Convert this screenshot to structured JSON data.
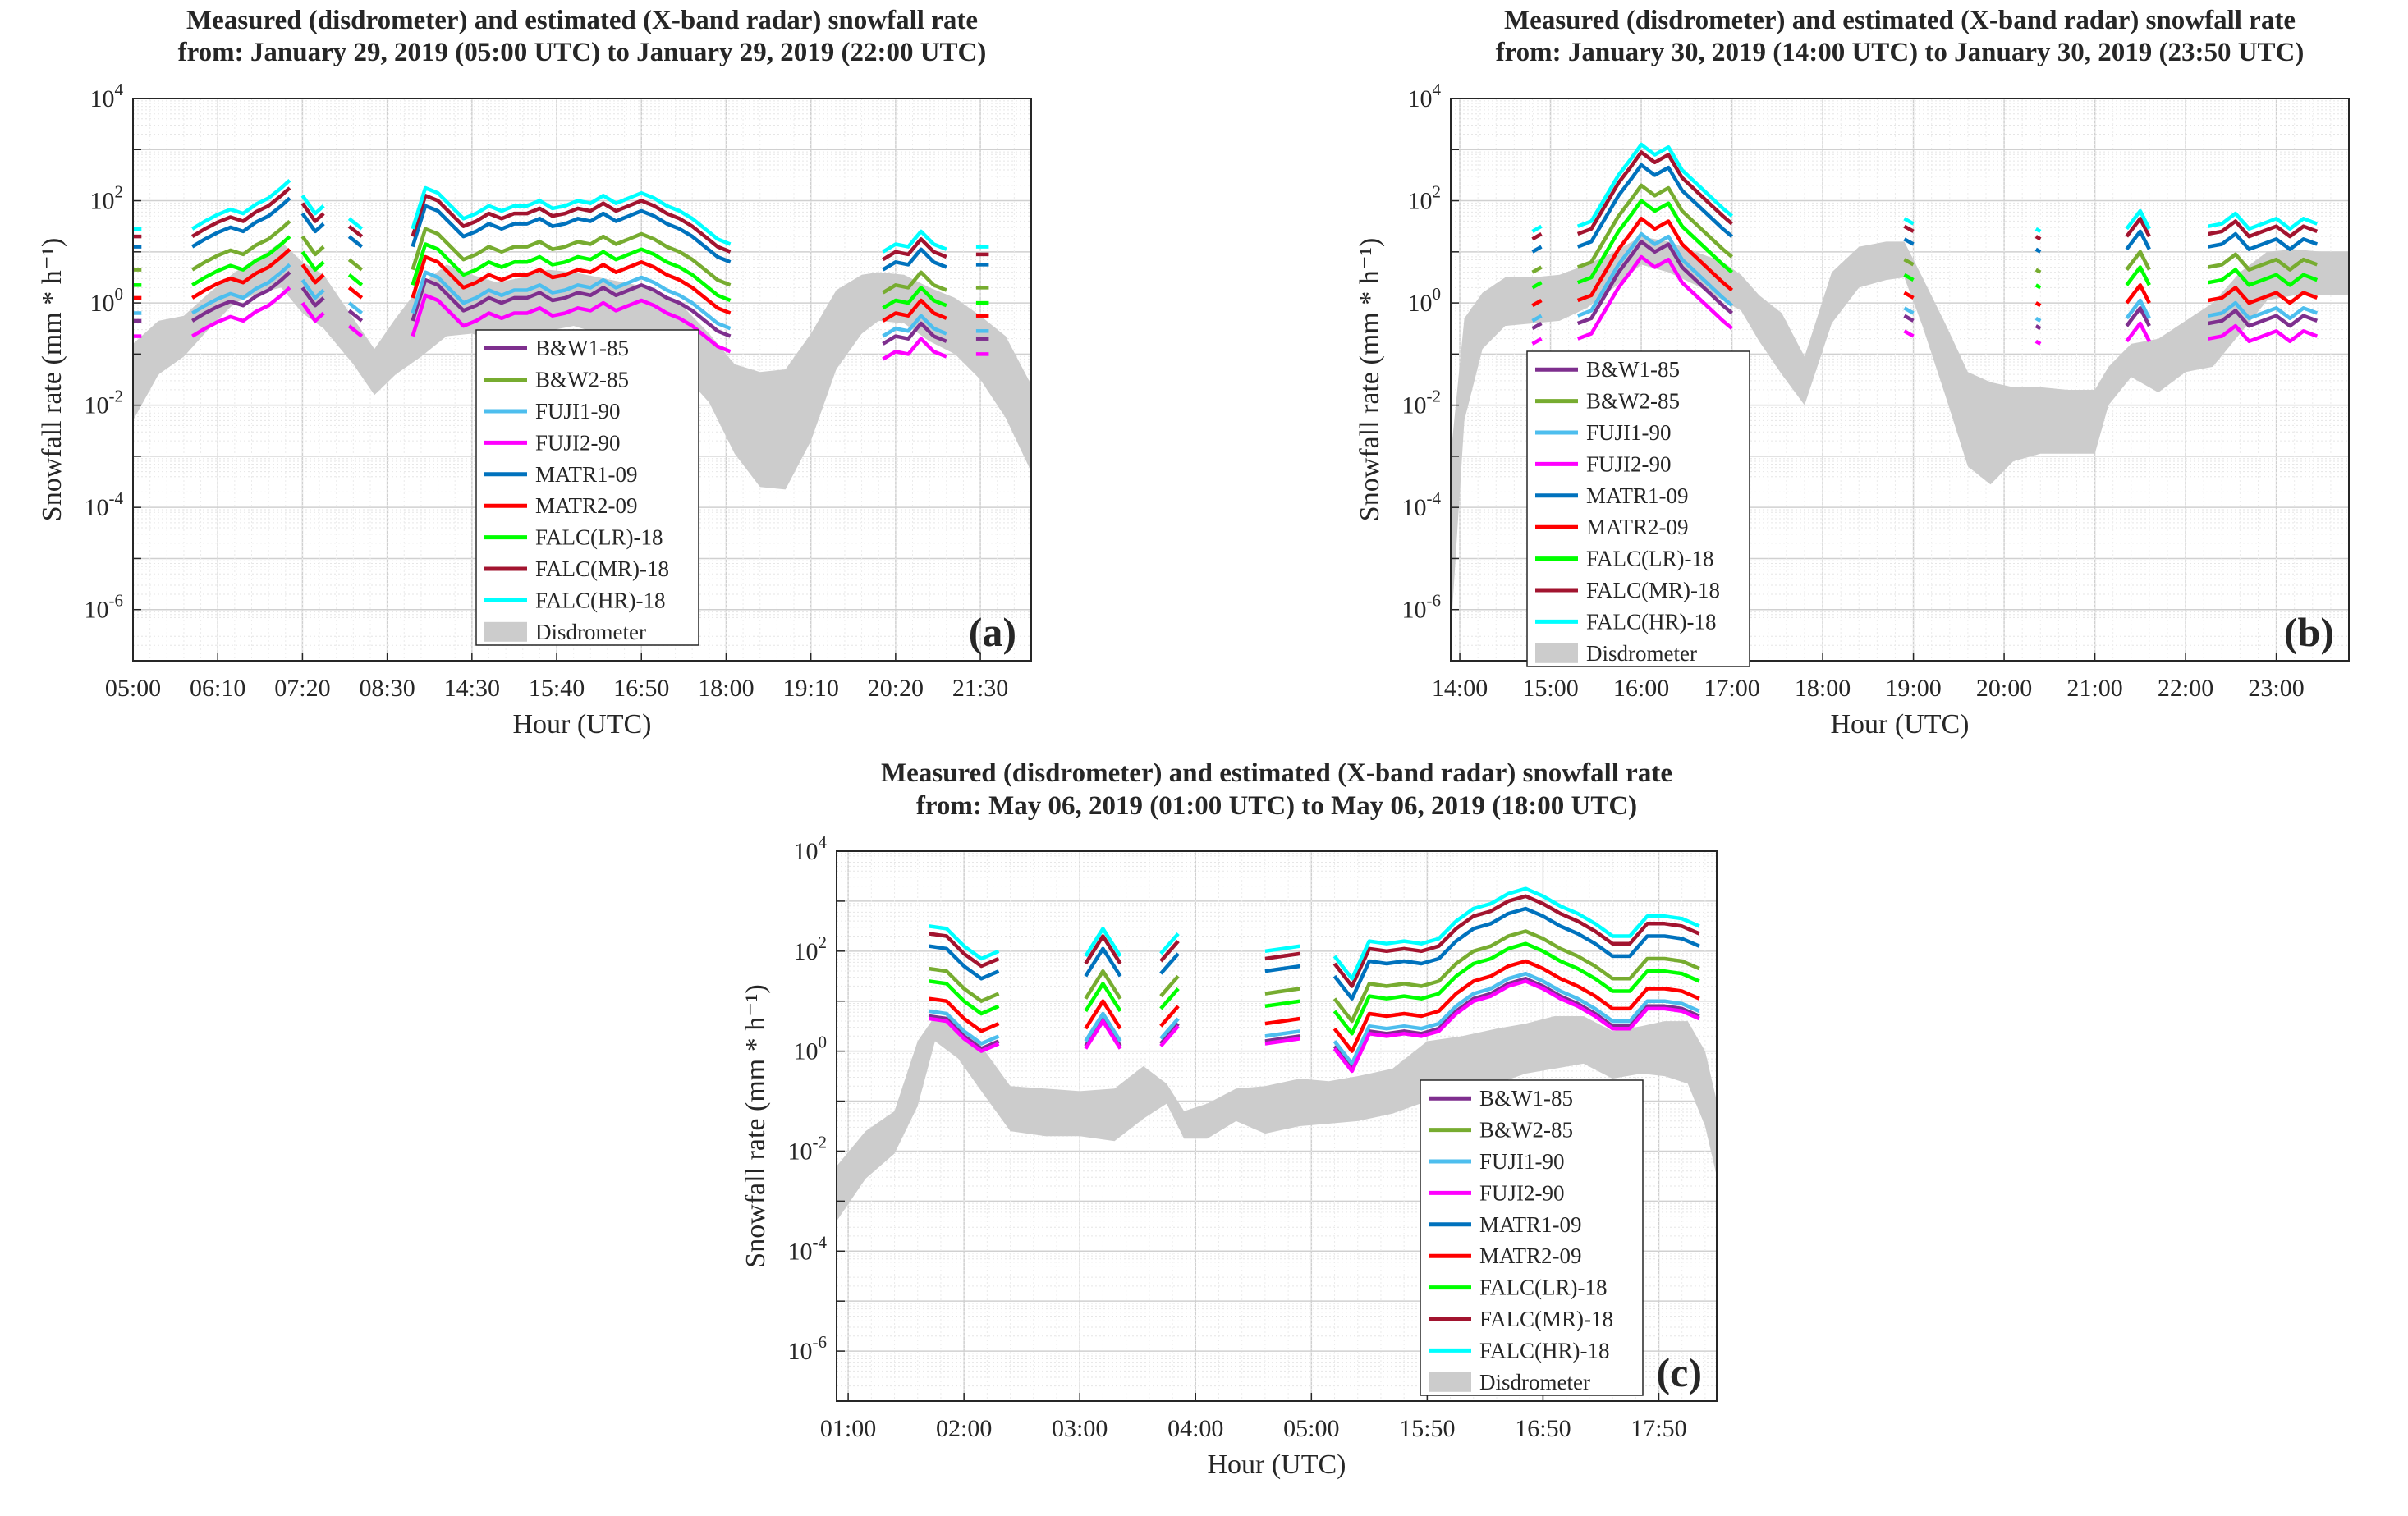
{
  "chart_data": [
    {
      "type": "line",
      "title_lines": [
        "Measured (disdrometer) and estimated (X-band radar) snowfall rate",
        "from: January 29, 2019 (05:00 UTC) to January 29, 2019 (22:00 UTC)"
      ],
      "xlabel": "Hour (UTC)",
      "ylabel": "Snowfall rate (mm * h⁻¹)",
      "yscale": "log",
      "ylim_exponent": [
        -7,
        4
      ],
      "ytick_exponents": [
        -6,
        -4,
        -2,
        0,
        2,
        4
      ],
      "xtick_labels": [
        "05:00",
        "06:10",
        "07:20",
        "08:30",
        "14:30",
        "15:40",
        "16:50",
        "18:00",
        "19:10",
        "20:20",
        "21:30"
      ],
      "x_range": [
        0,
        10.6
      ],
      "panel_label": "(a)",
      "grid": "on",
      "legend_position": "center",
      "series_names": [
        "B&W1-85",
        "B&W2-85",
        "FUJI1-90",
        "FUJI2-90",
        "MATR1-09",
        "MATR2-09",
        "FALC(LR)-18",
        "FALC(MR)-18",
        "FALC(HR)-18"
      ],
      "radar_segments": [
        {
          "x": [
            0.0,
            0.1
          ],
          "offset": [
            0.0,
            0.0
          ]
        },
        {
          "x": [
            0.7,
            0.85,
            1.0,
            1.15,
            1.3,
            1.45,
            1.6,
            1.75,
            1.85
          ],
          "offset": [
            0.0,
            0.15,
            0.28,
            0.38,
            0.3,
            0.48,
            0.6,
            0.8,
            0.95
          ]
        },
        {
          "x": [
            2.0,
            2.15,
            2.25
          ],
          "offset": [
            0.65,
            0.3,
            0.45
          ]
        },
        {
          "x": [
            2.55,
            2.7
          ],
          "offset": [
            0.2,
            0.0
          ]
        },
        {
          "x": [
            3.3,
            3.45,
            3.6,
            3.75,
            3.9,
            4.05,
            4.2,
            4.35,
            4.5,
            4.65,
            4.8,
            4.95,
            5.1,
            5.25,
            5.4,
            5.55,
            5.7,
            5.85,
            6.0,
            6.15,
            6.3,
            6.45,
            6.6,
            6.75,
            6.9,
            7.05
          ],
          "offset": [
            0.0,
            0.8,
            0.7,
            0.45,
            0.2,
            0.3,
            0.45,
            0.35,
            0.45,
            0.45,
            0.55,
            0.4,
            0.45,
            0.55,
            0.5,
            0.65,
            0.5,
            0.6,
            0.7,
            0.6,
            0.45,
            0.35,
            0.2,
            0.0,
            -0.2,
            -0.3
          ]
        },
        {
          "x": [
            8.85,
            9.0,
            9.15,
            9.3,
            9.45,
            9.6
          ],
          "offset": [
            -0.45,
            -0.3,
            -0.35,
            -0.05,
            -0.3,
            -0.4
          ]
        },
        {
          "x": [
            9.95,
            10.1
          ],
          "offset": [
            -0.35,
            -0.35
          ]
        }
      ],
      "series_offsets": [
        -0.5,
        0.5,
        -0.35,
        -0.8,
        0.95,
        -0.05,
        0.2,
        1.15,
        1.3
      ],
      "radar_base": 0.15,
      "disdrometer_band": {
        "x": [
          0.0,
          0.3,
          0.6,
          0.9,
          1.2,
          1.5,
          1.75,
          2.0,
          2.25,
          2.6,
          2.85,
          3.1,
          3.4,
          3.7,
          4.0,
          4.3,
          4.6,
          4.9,
          5.2,
          5.5,
          5.8,
          6.1,
          6.45,
          6.8,
          7.1,
          7.4,
          7.7,
          8.0,
          8.3,
          8.6,
          8.8,
          9.1,
          9.4,
          9.7,
          10.0,
          10.3,
          10.6
        ],
        "upper": [
          -0.8,
          -0.35,
          -0.25,
          0.2,
          0.6,
          0.9,
          1.2,
          0.8,
          0.55,
          -0.3,
          -0.9,
          -0.3,
          0.35,
          0.75,
          0.55,
          0.4,
          0.5,
          0.65,
          0.6,
          0.5,
          0.4,
          0.3,
          0.0,
          -0.6,
          -1.2,
          -1.35,
          -1.3,
          -0.6,
          0.25,
          0.55,
          0.6,
          0.55,
          0.3,
          0.1,
          -0.25,
          -0.65,
          -1.6
        ],
        "lower": [
          -2.3,
          -1.4,
          -1.05,
          -0.5,
          0.0,
          0.2,
          0.3,
          -0.2,
          -0.5,
          -1.2,
          -1.8,
          -1.4,
          -1.05,
          -0.65,
          -0.6,
          -0.75,
          -0.7,
          -0.55,
          -0.45,
          -0.6,
          -0.75,
          -0.95,
          -1.3,
          -1.95,
          -2.95,
          -3.6,
          -3.65,
          -2.7,
          -1.3,
          -0.6,
          -0.35,
          -0.4,
          -0.75,
          -1.0,
          -1.5,
          -2.25,
          -3.3
        ]
      }
    },
    {
      "type": "line",
      "title_lines": [
        "Measured (disdrometer) and estimated (X-band radar) snowfall rate",
        "from: January 30, 2019 (14:00 UTC) to January 30, 2019 (23:50 UTC)"
      ],
      "xlabel": "Hour (UTC)",
      "ylabel": "Snowfall rate (mm * h⁻¹)",
      "yscale": "log",
      "ylim_exponent": [
        -7,
        4
      ],
      "ytick_exponents": [
        -6,
        -4,
        -2,
        0,
        2,
        4
      ],
      "xtick_labels": [
        "14:00",
        "15:00",
        "16:00",
        "17:00",
        "18:00",
        "19:00",
        "20:00",
        "21:00",
        "22:00",
        "23:00"
      ],
      "x_range": [
        -0.1,
        9.8
      ],
      "panel_label": "(b)",
      "grid": "on",
      "legend_position": "center-left",
      "series_names": [
        "B&W1-85",
        "B&W2-85",
        "FUJI1-90",
        "FUJI2-90",
        "MATR1-09",
        "MATR2-09",
        "FALC(LR)-18",
        "FALC(MR)-18",
        "FALC(HR)-18"
      ],
      "radar_segments": [
        {
          "x": [
            0.8,
            0.9
          ],
          "offset": [
            -0.1,
            0.0
          ]
        },
        {
          "x": [
            1.3,
            1.45,
            1.6,
            1.75,
            1.9,
            2.0,
            2.15,
            2.3,
            2.45,
            2.6,
            2.75,
            2.9,
            3.0
          ],
          "offset": [
            0.0,
            0.1,
            0.55,
            1.0,
            1.35,
            1.6,
            1.4,
            1.55,
            1.1,
            0.85,
            0.6,
            0.35,
            0.2
          ]
        },
        {
          "x": [
            4.9,
            5.0
          ],
          "offset": [
            0.15,
            0.05
          ]
        },
        {
          "x": [
            6.35,
            6.4
          ],
          "offset": [
            -0.05,
            -0.1
          ]
        },
        {
          "x": [
            7.35,
            7.5,
            7.6
          ],
          "offset": [
            -0.05,
            0.3,
            -0.05
          ]
        },
        {
          "x": [
            8.25,
            8.4,
            8.55,
            8.7,
            8.85,
            9.0,
            9.15,
            9.3,
            9.45
          ],
          "offset": [
            0.0,
            0.05,
            0.25,
            -0.05,
            0.05,
            0.15,
            -0.05,
            0.15,
            0.05
          ]
        }
      ],
      "series_offsets": [
        -0.55,
        0.55,
        -0.4,
        -0.85,
        0.95,
        -0.1,
        0.25,
        1.2,
        1.35
      ],
      "radar_base": 0.15,
      "disdrometer_band": {
        "x": [
          -0.1,
          0.05,
          0.25,
          0.5,
          0.8,
          1.1,
          1.4,
          1.7,
          2.0,
          2.3,
          2.6,
          2.9,
          3.1,
          3.3,
          3.55,
          3.8,
          4.1,
          4.4,
          4.7,
          4.9,
          5.1,
          5.35,
          5.6,
          5.85,
          6.1,
          6.4,
          6.7,
          7.0,
          7.15,
          7.4,
          7.7,
          8.0,
          8.3,
          8.6,
          8.9,
          9.2,
          9.5,
          9.8
        ],
        "upper": [
          -3.0,
          -0.3,
          0.2,
          0.5,
          0.5,
          0.55,
          0.75,
          1.0,
          1.3,
          1.2,
          1.0,
          0.8,
          0.55,
          0.15,
          -0.2,
          -1.05,
          0.6,
          1.1,
          1.2,
          1.2,
          0.5,
          -0.4,
          -1.35,
          -1.55,
          -1.65,
          -1.65,
          -1.7,
          -1.7,
          -1.25,
          -0.8,
          -0.7,
          -0.35,
          0.0,
          0.6,
          1.0,
          1.05,
          1.0,
          1.0
        ],
        "lower": [
          -6.5,
          -2.3,
          -0.9,
          -0.45,
          -0.4,
          -0.35,
          -0.1,
          0.3,
          0.75,
          0.6,
          0.35,
          0.05,
          -0.15,
          -0.75,
          -1.4,
          -2.0,
          -0.4,
          0.3,
          0.45,
          0.5,
          -0.45,
          -1.8,
          -3.2,
          -3.55,
          -3.1,
          -2.95,
          -2.95,
          -2.95,
          -2.0,
          -1.45,
          -1.75,
          -1.35,
          -1.25,
          -0.6,
          0.05,
          0.15,
          0.15,
          0.15
        ]
      }
    },
    {
      "type": "line",
      "title_lines": [
        "Measured (disdrometer) and estimated (X-band radar) snowfall rate",
        "from: May 06, 2019 (01:00 UTC) to May 06, 2019 (18:00 UTC)"
      ],
      "xlabel": "Hour (UTC)",
      "ylabel": "Snowfall rate (mm * h⁻¹)",
      "yscale": "log",
      "ylim_exponent": [
        -7,
        4
      ],
      "ytick_exponents": [
        -6,
        -4,
        -2,
        0,
        2,
        4
      ],
      "xtick_labels": [
        "01:00",
        "02:00",
        "03:00",
        "04:00",
        "05:00",
        "15:50",
        "16:50",
        "17:50"
      ],
      "x_range": [
        -0.1,
        7.5
      ],
      "panel_label": "(c)",
      "grid": "on",
      "legend_position": "bottom-right",
      "series_names": [
        "B&W1-85",
        "B&W2-85",
        "FUJI1-90",
        "FUJI2-90",
        "MATR1-09",
        "MATR2-09",
        "FALC(LR)-18",
        "FALC(MR)-18",
        "FALC(HR)-18"
      ],
      "radar_segments": [
        {
          "x": [
            0.7,
            0.85,
            1.0,
            1.15,
            1.3
          ],
          "offset": [
            0.6,
            0.55,
            0.2,
            -0.05,
            0.1
          ]
        },
        {
          "x": [
            2.05,
            2.2,
            2.35
          ],
          "offset": [
            0.0,
            0.55,
            0.0
          ]
        },
        {
          "x": [
            2.7,
            2.85
          ],
          "offset": [
            0.05,
            0.45
          ]
        },
        {
          "x": [
            3.6,
            3.75,
            3.9
          ],
          "offset": [
            0.1,
            0.15,
            0.2
          ]
        },
        {
          "x": [
            4.2,
            4.35,
            4.5,
            4.65,
            4.8,
            4.95,
            5.1,
            5.25,
            5.4,
            5.55,
            5.7,
            5.85,
            6.0,
            6.15,
            6.3,
            6.45,
            6.6,
            6.75,
            6.9,
            7.05,
            7.2,
            7.35
          ],
          "offset": [
            0.0,
            -0.45,
            0.3,
            0.25,
            0.3,
            0.25,
            0.35,
            0.7,
            0.95,
            1.05,
            1.25,
            1.35,
            1.2,
            1.0,
            0.85,
            0.65,
            0.4,
            0.4,
            0.8,
            0.8,
            0.75,
            0.6
          ]
        }
      ],
      "series_offsets": [
        -0.45,
        0.5,
        -0.35,
        -0.5,
        0.95,
        -0.1,
        0.25,
        1.2,
        1.35
      ],
      "radar_base": 0.55,
      "disdrometer_band": {
        "x": [
          -0.1,
          0.15,
          0.4,
          0.6,
          0.75,
          0.95,
          1.15,
          1.4,
          1.7,
          2.0,
          2.3,
          2.55,
          2.75,
          2.9,
          3.1,
          3.35,
          3.6,
          3.9,
          4.15,
          4.4,
          4.7,
          5.0,
          5.3,
          5.6,
          5.85,
          6.1,
          6.35,
          6.6,
          6.85,
          7.05,
          7.25,
          7.4,
          7.5
        ],
        "upper": [
          -2.3,
          -1.6,
          -1.2,
          0.2,
          0.7,
          0.55,
          0.1,
          -0.7,
          -0.75,
          -0.8,
          -0.75,
          -0.3,
          -0.65,
          -1.2,
          -1.05,
          -0.75,
          -0.7,
          -0.55,
          -0.6,
          -0.5,
          -0.35,
          0.2,
          0.3,
          0.45,
          0.55,
          0.7,
          0.7,
          0.4,
          0.5,
          0.6,
          0.6,
          0.0,
          -1.0
        ],
        "lower": [
          -3.4,
          -2.55,
          -2.05,
          -1.1,
          0.2,
          -0.15,
          -0.8,
          -1.6,
          -1.7,
          -1.7,
          -1.8,
          -1.35,
          -1.05,
          -1.75,
          -1.75,
          -1.4,
          -1.65,
          -1.5,
          -1.45,
          -1.4,
          -1.25,
          -1.0,
          -0.85,
          -0.65,
          -0.45,
          -0.35,
          -0.25,
          -0.55,
          -0.45,
          -0.5,
          -0.65,
          -1.5,
          -2.5
        ]
      }
    }
  ],
  "colors": {
    "B&W1-85": "#7e2f8e",
    "B&W2-85": "#77ac30",
    "FUJI1-90": "#4dbeee",
    "FUJI2-90": "#ff00ff",
    "MATR1-09": "#0072bd",
    "MATR2-09": "#ff0000",
    "FALC(LR)-18": "#00ff00",
    "FALC(MR)-18": "#a2142f",
    "FALC(HR)-18": "#00ffff",
    "Disdrometer": "#cccccc"
  },
  "disdrometer_label": "Disdrometer"
}
